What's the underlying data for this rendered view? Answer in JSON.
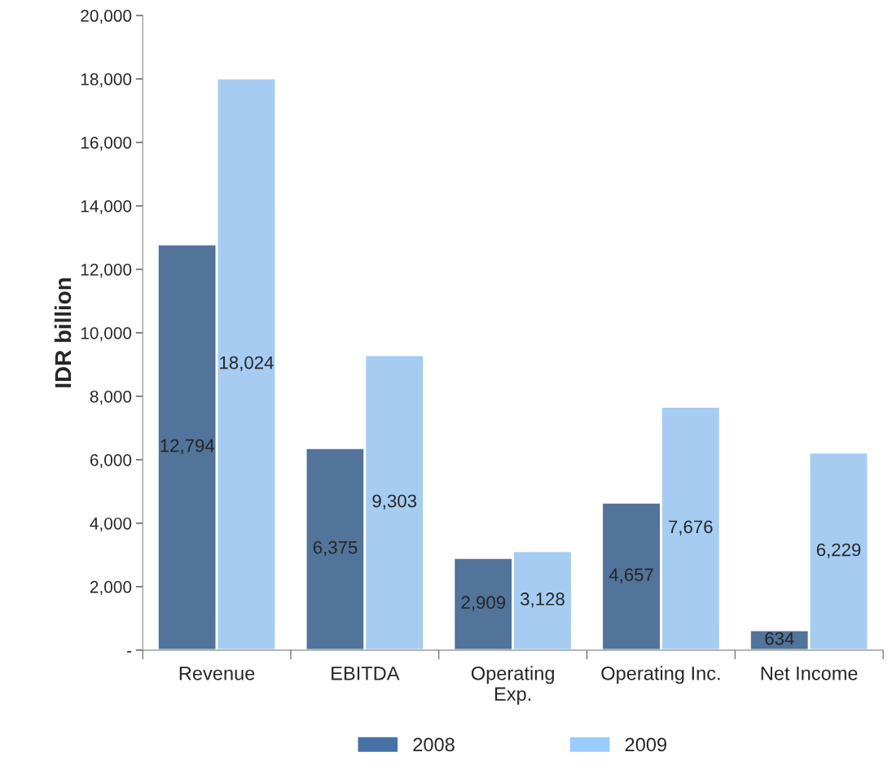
{
  "chart_data": {
    "type": "bar",
    "ylabel": "IDR billion",
    "categories": [
      "Revenue",
      "EBITDA",
      "Operating\nExp.",
      "Operating Inc.",
      "Net Income"
    ],
    "series": [
      {
        "name": "2008",
        "color": "#4672a6",
        "values": [
          12794,
          6375,
          2909,
          4657,
          634
        ],
        "value_labels": [
          "12,794",
          "6,375",
          "2,909",
          "4,657",
          "634"
        ]
      },
      {
        "name": "2009",
        "color": "#99ccff",
        "values": [
          18024,
          9303,
          3128,
          7676,
          6229
        ],
        "value_labels": [
          "18,024",
          "9,303",
          "3,128",
          "7,676",
          "6,229"
        ]
      }
    ],
    "ylim": [
      0,
      20000
    ],
    "yticks": [
      {
        "value": 0,
        "label": "-"
      },
      {
        "value": 2000,
        "label": "2,000"
      },
      {
        "value": 4000,
        "label": "4,000"
      },
      {
        "value": 6000,
        "label": "6,000"
      },
      {
        "value": 8000,
        "label": "8,000"
      },
      {
        "value": 10000,
        "label": "10,000"
      },
      {
        "value": 12000,
        "label": "12,000"
      },
      {
        "value": 14000,
        "label": "14,000"
      },
      {
        "value": 16000,
        "label": "16,000"
      },
      {
        "value": 18000,
        "label": "18,000"
      },
      {
        "value": 20000,
        "label": "20,000"
      }
    ],
    "grid": false,
    "legend": "bottom"
  }
}
